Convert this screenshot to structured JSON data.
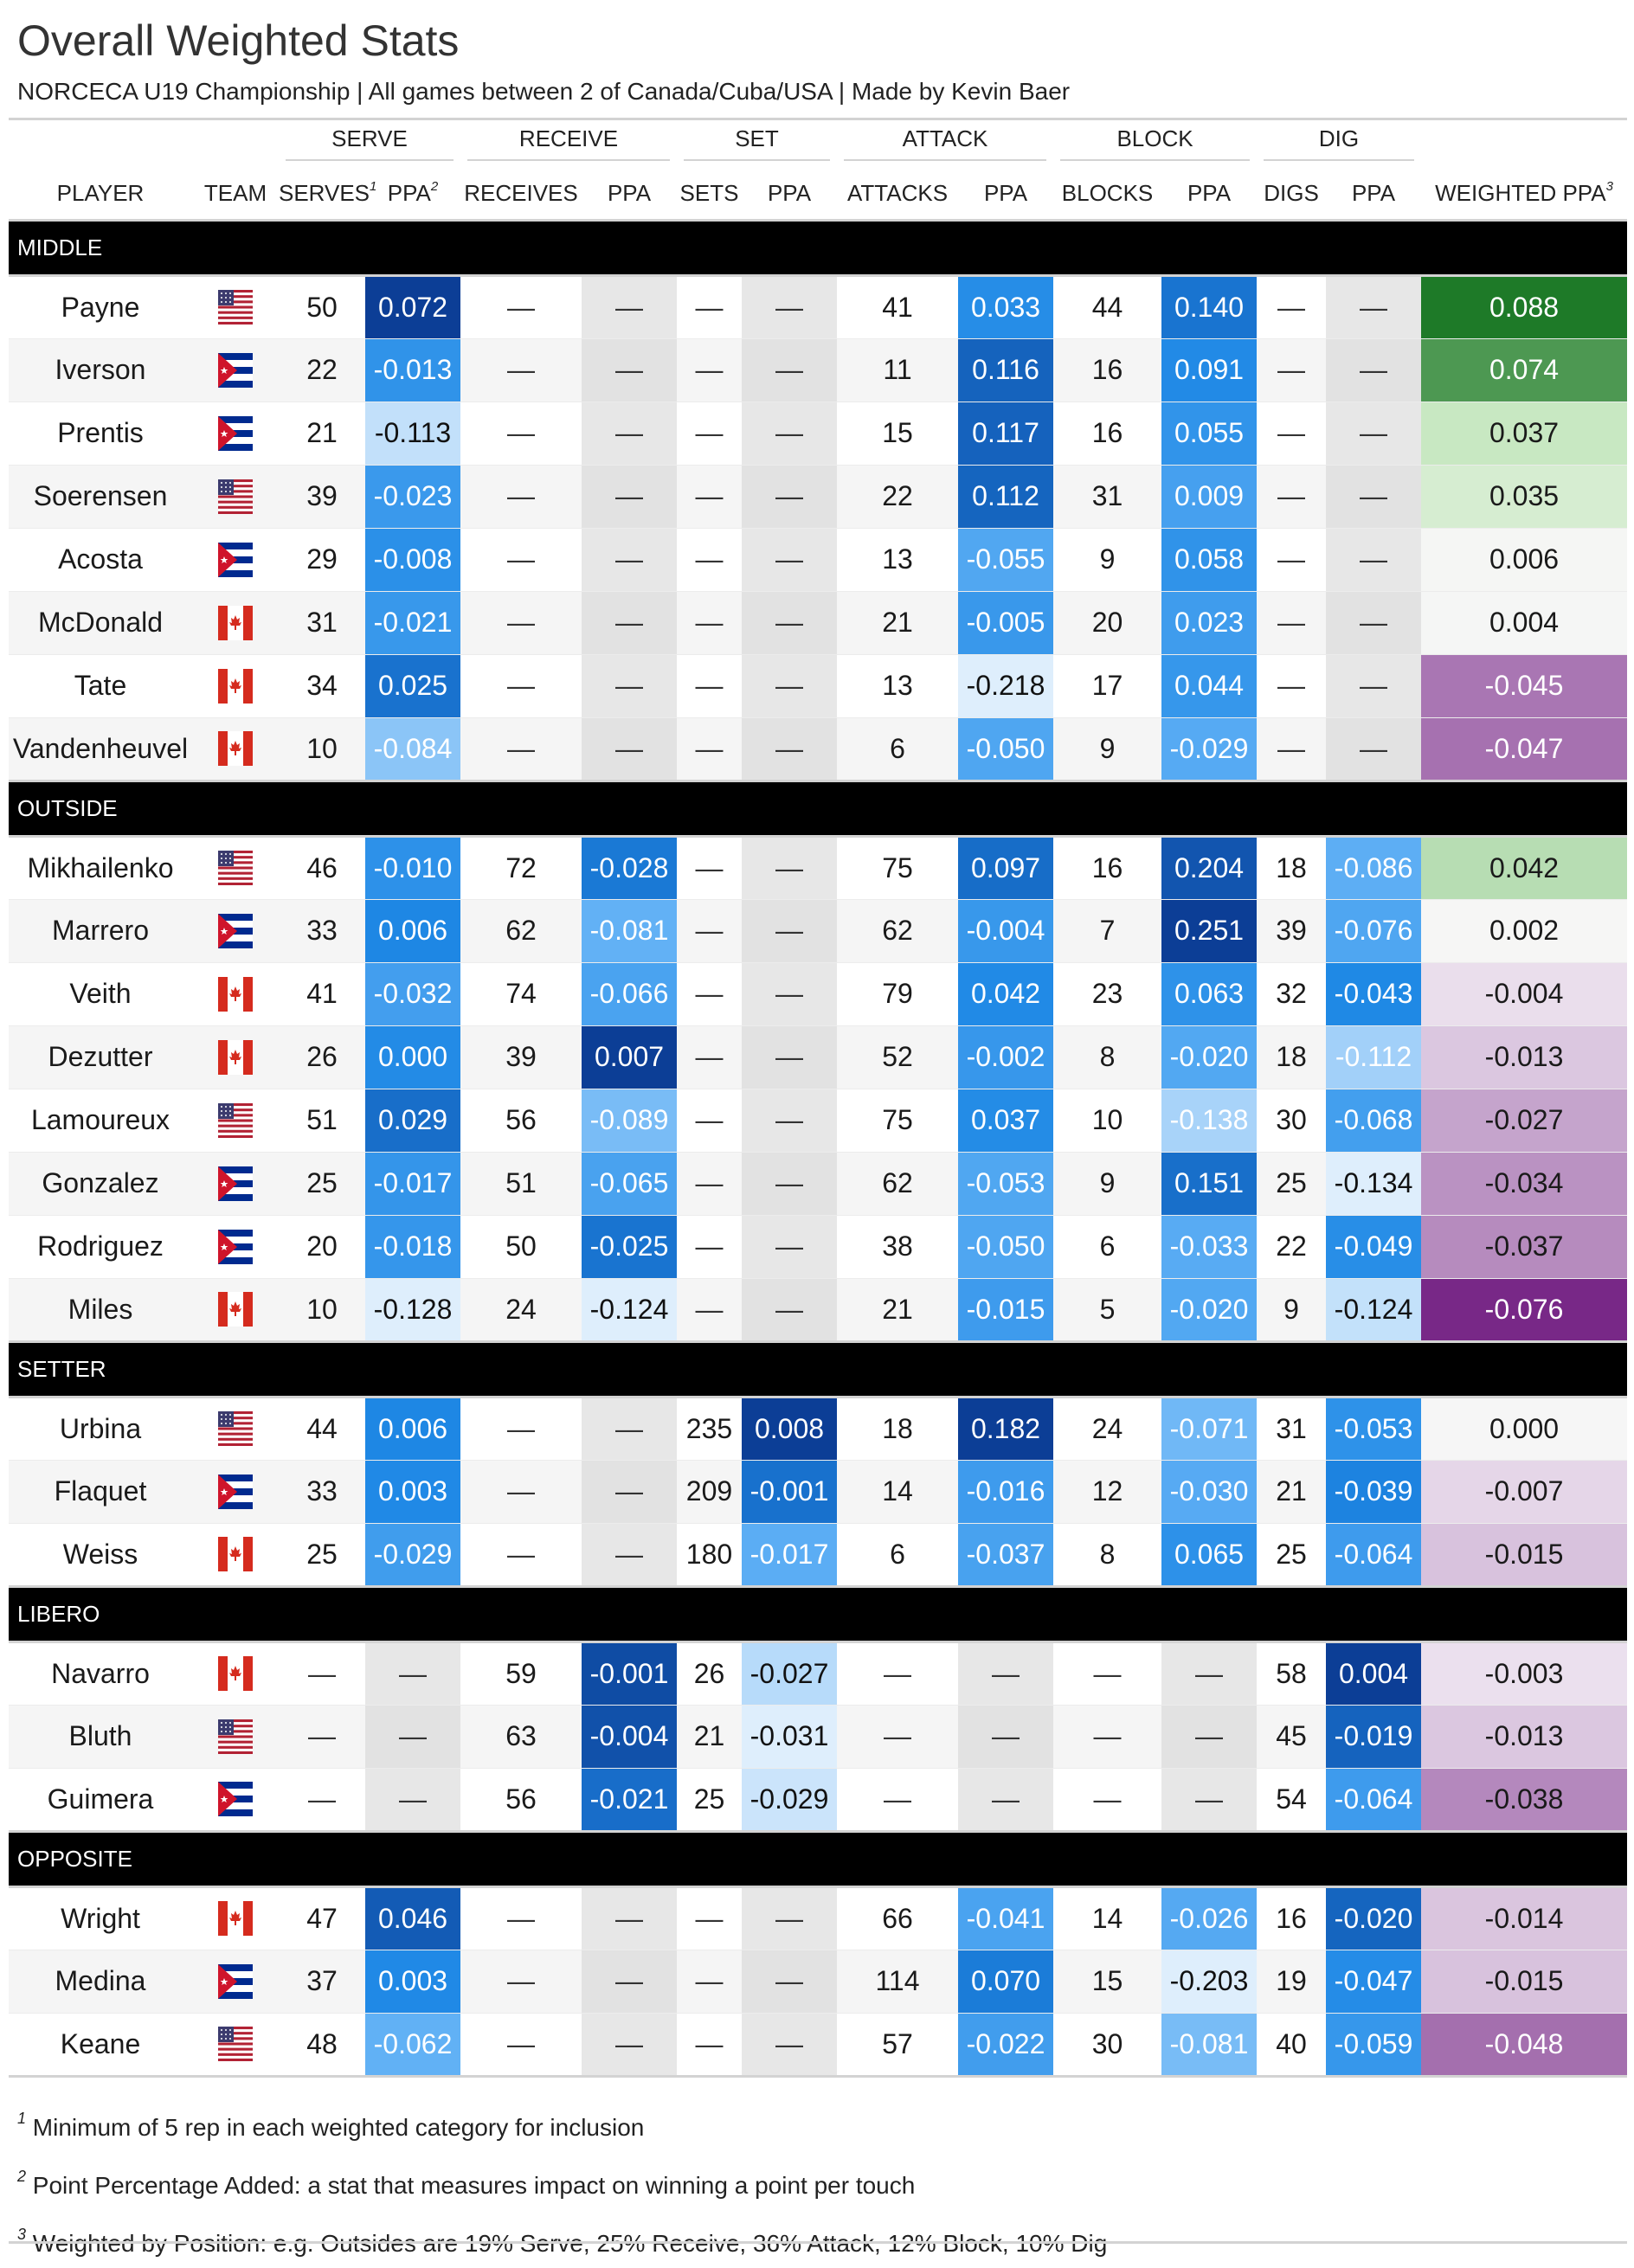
{
  "title": "Overall Weighted Stats",
  "subtitle": "NORCECA U19 Championship | All games between 2 of Canada/Cuba/USA | Made by Kevin Baer",
  "spanners": [
    "SERVE",
    "RECEIVE",
    "SET",
    "ATTACK",
    "BLOCK",
    "DIG"
  ],
  "columns": {
    "player": "PLAYER",
    "team": "TEAM",
    "serves": "SERVES",
    "serves_sup": "1",
    "ppa": "PPA",
    "ppa_sup": "2",
    "receives": "RECEIVES",
    "sets": "SETS",
    "attacks": "ATTACKS",
    "blocks": "BLOCKS",
    "digs": "DIGS",
    "weighted": "WEIGHTED PPA",
    "weighted_sup": "3"
  },
  "dash": "—",
  "colors": {
    "canada_red": "#d52b1e",
    "usa_red": "#b22234",
    "usa_blue": "#3c3b6e",
    "cuba_blue": "#002a8f",
    "cuba_red": "#cf142b"
  },
  "groups": [
    {
      "name": "MIDDLE",
      "rows": [
        {
          "player": "Payne",
          "team": "usa",
          "cells": [
            "50",
            "0.072",
            "—",
            "—",
            "—",
            "—",
            "41",
            "0.033",
            "44",
            "0.140",
            "—",
            "—",
            "0.088"
          ]
        },
        {
          "player": "Iverson",
          "team": "cuba",
          "cells": [
            "22",
            "-0.013",
            "—",
            "—",
            "—",
            "—",
            "11",
            "0.116",
            "16",
            "0.091",
            "—",
            "—",
            "0.074"
          ]
        },
        {
          "player": "Prentis",
          "team": "cuba",
          "cells": [
            "21",
            "-0.113",
            "—",
            "—",
            "—",
            "—",
            "15",
            "0.117",
            "16",
            "0.055",
            "—",
            "—",
            "0.037"
          ]
        },
        {
          "player": "Soerensen",
          "team": "usa",
          "cells": [
            "39",
            "-0.023",
            "—",
            "—",
            "—",
            "—",
            "22",
            "0.112",
            "31",
            "0.009",
            "—",
            "—",
            "0.035"
          ]
        },
        {
          "player": "Acosta",
          "team": "cuba",
          "cells": [
            "29",
            "-0.008",
            "—",
            "—",
            "—",
            "—",
            "13",
            "-0.055",
            "9",
            "0.058",
            "—",
            "—",
            "0.006"
          ]
        },
        {
          "player": "McDonald",
          "team": "canada",
          "cells": [
            "31",
            "-0.021",
            "—",
            "—",
            "—",
            "—",
            "21",
            "-0.005",
            "20",
            "0.023",
            "—",
            "—",
            "0.004"
          ]
        },
        {
          "player": "Tate",
          "team": "canada",
          "cells": [
            "34",
            "0.025",
            "—",
            "—",
            "—",
            "—",
            "13",
            "-0.218",
            "17",
            "0.044",
            "—",
            "—",
            "-0.045"
          ]
        },
        {
          "player": "Vandenheuvel",
          "team": "canada",
          "cells": [
            "10",
            "-0.084",
            "—",
            "—",
            "—",
            "—",
            "6",
            "-0.050",
            "9",
            "-0.029",
            "—",
            "—",
            "-0.047"
          ]
        }
      ]
    },
    {
      "name": "OUTSIDE",
      "rows": [
        {
          "player": "Mikhailenko",
          "team": "usa",
          "cells": [
            "46",
            "-0.010",
            "72",
            "-0.028",
            "—",
            "—",
            "75",
            "0.097",
            "16",
            "0.204",
            "18",
            "-0.086",
            "0.042"
          ]
        },
        {
          "player": "Marrero",
          "team": "cuba",
          "cells": [
            "33",
            "0.006",
            "62",
            "-0.081",
            "—",
            "—",
            "62",
            "-0.004",
            "7",
            "0.251",
            "39",
            "-0.076",
            "0.002"
          ]
        },
        {
          "player": "Veith",
          "team": "canada",
          "cells": [
            "41",
            "-0.032",
            "74",
            "-0.066",
            "—",
            "—",
            "79",
            "0.042",
            "23",
            "0.063",
            "32",
            "-0.043",
            "-0.004"
          ]
        },
        {
          "player": "Dezutter",
          "team": "canada",
          "cells": [
            "26",
            "0.000",
            "39",
            "0.007",
            "—",
            "—",
            "52",
            "-0.002",
            "8",
            "-0.020",
            "18",
            "-0.112",
            "-0.013"
          ]
        },
        {
          "player": "Lamoureux",
          "team": "usa",
          "cells": [
            "51",
            "0.029",
            "56",
            "-0.089",
            "—",
            "—",
            "75",
            "0.037",
            "10",
            "-0.138",
            "30",
            "-0.068",
            "-0.027"
          ]
        },
        {
          "player": "Gonzalez",
          "team": "cuba",
          "cells": [
            "25",
            "-0.017",
            "51",
            "-0.065",
            "—",
            "—",
            "62",
            "-0.053",
            "9",
            "0.151",
            "25",
            "-0.134",
            "-0.034"
          ]
        },
        {
          "player": "Rodriguez",
          "team": "cuba",
          "cells": [
            "20",
            "-0.018",
            "50",
            "-0.025",
            "—",
            "—",
            "38",
            "-0.050",
            "6",
            "-0.033",
            "22",
            "-0.049",
            "-0.037"
          ]
        },
        {
          "player": "Miles",
          "team": "canada",
          "cells": [
            "10",
            "-0.128",
            "24",
            "-0.124",
            "—",
            "—",
            "21",
            "-0.015",
            "5",
            "-0.020",
            "9",
            "-0.124",
            "-0.076"
          ]
        }
      ]
    },
    {
      "name": "SETTER",
      "rows": [
        {
          "player": "Urbina",
          "team": "usa",
          "cells": [
            "44",
            "0.006",
            "—",
            "—",
            "235",
            "0.008",
            "18",
            "0.182",
            "24",
            "-0.071",
            "31",
            "-0.053",
            "0.000"
          ]
        },
        {
          "player": "Flaquet",
          "team": "cuba",
          "cells": [
            "33",
            "0.003",
            "—",
            "—",
            "209",
            "-0.001",
            "14",
            "-0.016",
            "12",
            "-0.030",
            "21",
            "-0.039",
            "-0.007"
          ]
        },
        {
          "player": "Weiss",
          "team": "canada",
          "cells": [
            "25",
            "-0.029",
            "—",
            "—",
            "180",
            "-0.017",
            "6",
            "-0.037",
            "8",
            "0.065",
            "25",
            "-0.064",
            "-0.015"
          ]
        }
      ]
    },
    {
      "name": "LIBERO",
      "rows": [
        {
          "player": "Navarro",
          "team": "canada",
          "cells": [
            "—",
            "—",
            "59",
            "-0.001",
            "26",
            "-0.027",
            "—",
            "—",
            "—",
            "—",
            "58",
            "0.004",
            "-0.003"
          ]
        },
        {
          "player": "Bluth",
          "team": "usa",
          "cells": [
            "—",
            "—",
            "63",
            "-0.004",
            "21",
            "-0.031",
            "—",
            "—",
            "—",
            "—",
            "45",
            "-0.019",
            "-0.013"
          ]
        },
        {
          "player": "Guimera",
          "team": "cuba",
          "cells": [
            "—",
            "—",
            "56",
            "-0.021",
            "25",
            "-0.029",
            "—",
            "—",
            "—",
            "—",
            "54",
            "-0.064",
            "-0.038"
          ]
        }
      ]
    },
    {
      "name": "OPPOSITE",
      "rows": [
        {
          "player": "Wright",
          "team": "canada",
          "cells": [
            "47",
            "0.046",
            "—",
            "—",
            "—",
            "—",
            "66",
            "-0.041",
            "14",
            "-0.026",
            "16",
            "-0.020",
            "-0.014"
          ]
        },
        {
          "player": "Medina",
          "team": "cuba",
          "cells": [
            "37",
            "0.003",
            "—",
            "—",
            "—",
            "—",
            "114",
            "0.070",
            "15",
            "-0.203",
            "19",
            "-0.047",
            "-0.015"
          ]
        },
        {
          "player": "Keane",
          "team": "usa",
          "cells": [
            "48",
            "-0.062",
            "—",
            "—",
            "—",
            "—",
            "57",
            "-0.022",
            "30",
            "-0.081",
            "40",
            "-0.059",
            "-0.048"
          ]
        }
      ]
    }
  ],
  "footnotes": [
    {
      "mark": "1",
      "text": "Minimum of 5 rep in each weighted category for inclusion"
    },
    {
      "mark": "2",
      "text": "Point Percentage Added: a stat that measures impact on winning a point per touch"
    },
    {
      "mark": "3",
      "text": "Weighted by Position: e.g. Outsides are 19% Serve, 25% Receive, 36% Attack, 12% Block, 10% Dig"
    }
  ]
}
